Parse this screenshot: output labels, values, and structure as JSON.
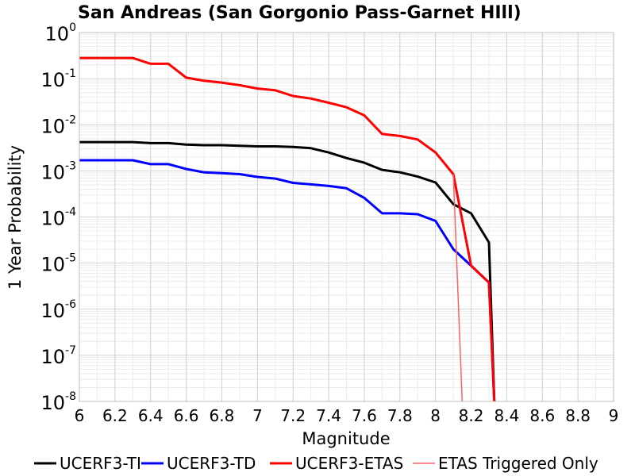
{
  "chart_data": {
    "type": "line",
    "title": "San Andreas (San Gorgonio Pass-Garnet HIll)",
    "xlabel": "Magnitude",
    "ylabel": "1 Year Probability",
    "xlim": [
      6,
      9
    ],
    "ylim": [
      1e-08,
      1
    ],
    "yscale": "log",
    "grid": true,
    "legend_position": "bottom",
    "x_ticks": [
      "6",
      "6.2",
      "6.4",
      "6.6",
      "6.8",
      "7",
      "7.2",
      "7.4",
      "7.6",
      "7.8",
      "8",
      "8.2",
      "8.4",
      "8.6",
      "8.8",
      "9"
    ],
    "y_ticks": [
      {
        "base": "10",
        "exp": "0"
      },
      {
        "base": "10",
        "exp": "-1"
      },
      {
        "base": "10",
        "exp": "-2"
      },
      {
        "base": "10",
        "exp": "-3"
      },
      {
        "base": "10",
        "exp": "-4"
      },
      {
        "base": "10",
        "exp": "-5"
      },
      {
        "base": "10",
        "exp": "-6"
      },
      {
        "base": "10",
        "exp": "-7"
      },
      {
        "base": "10",
        "exp": "-8"
      }
    ],
    "series": [
      {
        "name": "UCERF3-TI",
        "color": "#000000",
        "width": 3,
        "points": [
          [
            6.0,
            0.0042
          ],
          [
            6.3,
            0.0042
          ],
          [
            6.4,
            0.004
          ],
          [
            6.5,
            0.004
          ],
          [
            6.6,
            0.0037
          ],
          [
            6.7,
            0.0036
          ],
          [
            6.8,
            0.0036
          ],
          [
            6.9,
            0.0035
          ],
          [
            7.0,
            0.0034
          ],
          [
            7.1,
            0.0034
          ],
          [
            7.2,
            0.0033
          ],
          [
            7.3,
            0.0031
          ],
          [
            7.4,
            0.0025
          ],
          [
            7.5,
            0.0019
          ],
          [
            7.6,
            0.0015
          ],
          [
            7.7,
            0.00105
          ],
          [
            7.8,
            0.00093
          ],
          [
            7.9,
            0.00075
          ],
          [
            8.0,
            0.00056
          ],
          [
            8.1,
            0.00019
          ],
          [
            8.2,
            0.00012
          ],
          [
            8.3,
            2.8e-05
          ],
          [
            8.33,
            1e-08
          ]
        ]
      },
      {
        "name": "UCERF3-TD",
        "color": "#0000ff",
        "width": 3,
        "points": [
          [
            6.0,
            0.0017
          ],
          [
            6.3,
            0.0017
          ],
          [
            6.4,
            0.0014
          ],
          [
            6.5,
            0.0014
          ],
          [
            6.6,
            0.0011
          ],
          [
            6.7,
            0.00093
          ],
          [
            6.8,
            0.00089
          ],
          [
            6.9,
            0.00085
          ],
          [
            7.0,
            0.00074
          ],
          [
            7.1,
            0.00068
          ],
          [
            7.2,
            0.00055
          ],
          [
            7.3,
            0.00051
          ],
          [
            7.4,
            0.00047
          ],
          [
            7.5,
            0.00042
          ],
          [
            7.6,
            0.00026
          ],
          [
            7.7,
            0.00012
          ],
          [
            7.8,
            0.00012
          ],
          [
            7.9,
            0.000115
          ],
          [
            8.0,
            8.2e-05
          ],
          [
            8.1,
            2e-05
          ],
          [
            8.2,
            8.8e-06
          ],
          [
            8.3,
            3.8e-06
          ],
          [
            8.33,
            1e-08
          ]
        ]
      },
      {
        "name": "UCERF3-ETAS",
        "color": "#ff0000",
        "width": 3,
        "points": [
          [
            6.0,
            0.28
          ],
          [
            6.3,
            0.28
          ],
          [
            6.4,
            0.21
          ],
          [
            6.5,
            0.21
          ],
          [
            6.6,
            0.105
          ],
          [
            6.7,
            0.09
          ],
          [
            6.8,
            0.082
          ],
          [
            6.9,
            0.072
          ],
          [
            7.0,
            0.061
          ],
          [
            7.1,
            0.056
          ],
          [
            7.2,
            0.042
          ],
          [
            7.3,
            0.037
          ],
          [
            7.4,
            0.03
          ],
          [
            7.5,
            0.024
          ],
          [
            7.6,
            0.016
          ],
          [
            7.7,
            0.0063
          ],
          [
            7.8,
            0.0057
          ],
          [
            7.9,
            0.0048
          ],
          [
            8.0,
            0.0025
          ],
          [
            8.1,
            0.00085
          ],
          [
            8.2,
            8.8e-06
          ],
          [
            8.3,
            3.8e-06
          ],
          [
            8.33,
            1e-08
          ]
        ]
      },
      {
        "name": "ETAS Triggered Only",
        "color": "#ff6060",
        "width": 1.5,
        "points": [
          [
            8.1,
            0.00085
          ],
          [
            8.15,
            1e-08
          ]
        ]
      }
    ]
  }
}
